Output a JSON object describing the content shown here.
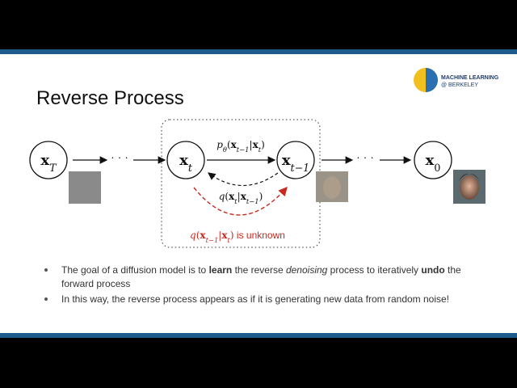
{
  "header": {
    "title": "Reverse Process",
    "logo": {
      "line1": "MACHINE LEARNING",
      "line2": "@ BERKELEY"
    }
  },
  "diagram": {
    "nodes": [
      [
        {
          "t": "x",
          "s": "b"
        },
        {
          "t": "T",
          "s": "isub"
        }
      ],
      [
        {
          "t": "x",
          "s": "b"
        },
        {
          "t": "t",
          "s": "isub"
        }
      ],
      [
        {
          "t": "x",
          "s": "b"
        },
        {
          "t": "t−1",
          "s": "isub"
        }
      ],
      [
        {
          "t": "x",
          "s": "b"
        },
        {
          "t": "0",
          "s": "sub"
        }
      ]
    ],
    "ellipsis": "· · ·",
    "reverse_label": [
      {
        "t": "p",
        "s": "i"
      },
      {
        "t": "θ",
        "s": "isub"
      },
      {
        "t": "("
      },
      {
        "t": "x",
        "s": "b"
      },
      {
        "t": "t−1",
        "s": "isub"
      },
      {
        "t": "|"
      },
      {
        "t": "x",
        "s": "b"
      },
      {
        "t": "t",
        "s": "isub"
      },
      {
        "t": ")"
      }
    ],
    "forward_label": [
      {
        "t": "q",
        "s": "i"
      },
      {
        "t": "("
      },
      {
        "t": "x",
        "s": "b"
      },
      {
        "t": "t",
        "s": "isub"
      },
      {
        "t": "|"
      },
      {
        "t": "x",
        "s": "b"
      },
      {
        "t": "t−1",
        "s": "isub"
      },
      {
        "t": ")"
      }
    ],
    "unknown_label": [
      {
        "t": "q",
        "s": "i"
      },
      {
        "t": "("
      },
      {
        "t": "x",
        "s": "b"
      },
      {
        "t": "t−1",
        "s": "isub"
      },
      {
        "t": "|"
      },
      {
        "t": "x",
        "s": "b"
      },
      {
        "t": "t",
        "s": "isub"
      },
      {
        "t": ")"
      },
      {
        "t": " is unknown",
        "s": "sans"
      }
    ]
  },
  "bullets": [
    [
      [
        {
          "t": "The goal of a diffusion model is to "
        },
        {
          "t": "learn",
          "s": "b"
        },
        {
          "t": " the reverse "
        },
        {
          "t": "denoising",
          "s": "i"
        },
        {
          "t": " process to iteratively "
        },
        {
          "t": "undo",
          "s": "b"
        },
        {
          "t": " the"
        }
      ],
      [
        {
          "t": "forward process"
        }
      ]
    ],
    [
      [
        {
          "t": "In this way, the reverse process appears as if it is generating new data from random noise!"
        }
      ]
    ]
  ]
}
